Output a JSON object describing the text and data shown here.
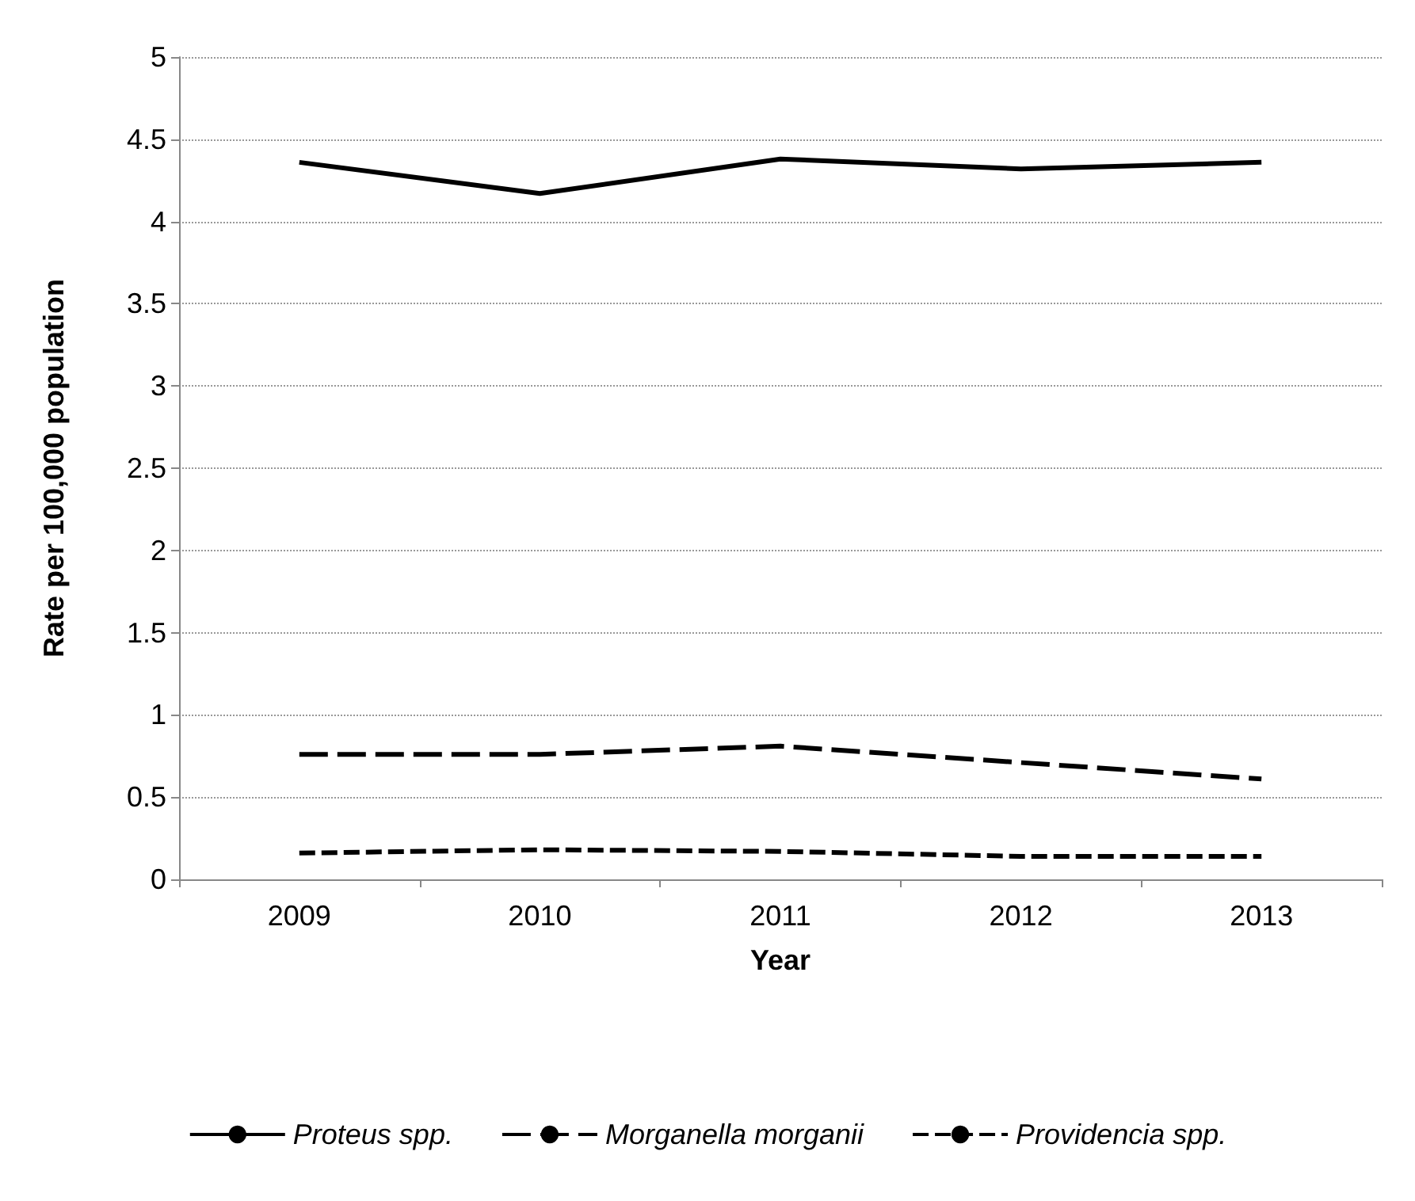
{
  "chart_data": {
    "type": "line",
    "xlabel": "Year",
    "ylabel": "Rate per 100,000 population",
    "categories": [
      "2009",
      "2010",
      "2011",
      "2012",
      "2013"
    ],
    "series": [
      {
        "name": "Proteus spp.",
        "color": "#000000",
        "line_style": "solid",
        "values": [
          4.36,
          4.17,
          4.38,
          4.32,
          4.36
        ]
      },
      {
        "name": "Morganella morganii",
        "color": "#000000",
        "line_style": "dashed",
        "values": [
          0.76,
          0.76,
          0.81,
          0.71,
          0.61
        ]
      },
      {
        "name": "Providencia spp.",
        "color": "#000000",
        "line_style": "dashed",
        "values": [
          0.16,
          0.18,
          0.17,
          0.14,
          0.14
        ]
      }
    ],
    "ylim": [
      0,
      5
    ],
    "yticks": [
      0,
      0.5,
      1,
      1.5,
      2,
      2.5,
      3,
      3.5,
      4,
      4.5,
      5
    ],
    "grid": "y",
    "legend": "bottom",
    "marker": "none"
  }
}
